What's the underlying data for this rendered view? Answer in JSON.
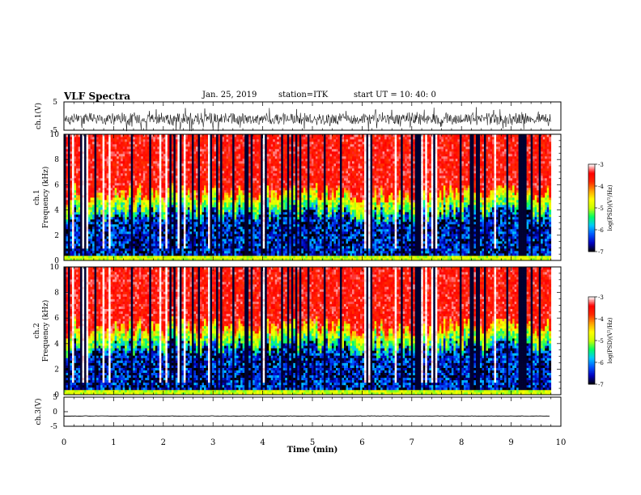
{
  "header": {
    "title": "VLF Spectra",
    "date": "Jan. 25, 2019",
    "station": "station=ITK",
    "start_ut": "start UT =   10: 40: 0"
  },
  "chart_data": [
    {
      "type": "line",
      "panel": "ch1-waveform",
      "ylabel": "ch.1(V)",
      "xlim": [
        0,
        10
      ],
      "ylim": [
        -5,
        5
      ],
      "yticks": [
        "5",
        "-5"
      ],
      "baseline": -1,
      "trace_end": 9.8,
      "noise": "dense bursty signal, approx -4 to +3 V"
    },
    {
      "type": "heatmap",
      "panel": "ch1-spectrogram",
      "ylabel_line1": "ch.1",
      "ylabel_line2": "Frequency (kHz)",
      "xlim": [
        0,
        10
      ],
      "ylim": [
        0,
        10
      ],
      "yticks": [
        "0",
        "2",
        "4",
        "6",
        "8",
        "10"
      ],
      "data_end": 9.8,
      "colorbar": {
        "label": "log(PSD)(V²/Hz)",
        "range": [
          -7,
          -3
        ],
        "ticks": [
          "-3",
          "-4",
          "-5",
          "-6",
          "-7"
        ]
      },
      "description_levels": {
        "low_freq": -6.5,
        "mid_freq": -5,
        "high_freq": -3.5
      }
    },
    {
      "type": "heatmap",
      "panel": "ch2-spectrogram",
      "ylabel_line1": "ch.2",
      "ylabel_line2": "Frequency (kHz)",
      "xlim": [
        0,
        10
      ],
      "ylim": [
        0,
        10
      ],
      "yticks": [
        "0",
        "2",
        "4",
        "6",
        "8",
        "10"
      ],
      "data_end": 9.8,
      "colorbar": {
        "label": "log(PSD)(V²/Hz)",
        "range": [
          -7,
          -3
        ],
        "ticks": [
          "-3",
          "-4",
          "-5",
          "-6",
          "-7"
        ]
      },
      "description_levels": {
        "low_freq": -6.5,
        "mid_freq": -5,
        "high_freq": -3.5
      }
    },
    {
      "type": "line",
      "panel": "ch3-waveform",
      "ylabel": "ch.3(V)",
      "xlim": [
        0,
        10
      ],
      "ylim": [
        -5,
        5
      ],
      "yticks": [
        "5",
        "0",
        "-5"
      ],
      "baseline": -1.5,
      "trace_end": 9.8
    }
  ],
  "xaxis": {
    "label": "Time (min)",
    "ticks": [
      "0",
      "1",
      "2",
      "3",
      "4",
      "5",
      "6",
      "7",
      "8",
      "9",
      "10"
    ]
  },
  "colors": {
    "colormap": [
      "#000000",
      "#0000c0",
      "#0055ff",
      "#00c8ff",
      "#00ff64",
      "#c8ff00",
      "#ffff00",
      "#ffa000",
      "#ff2800",
      "#ff0000",
      "#ffffff"
    ]
  }
}
